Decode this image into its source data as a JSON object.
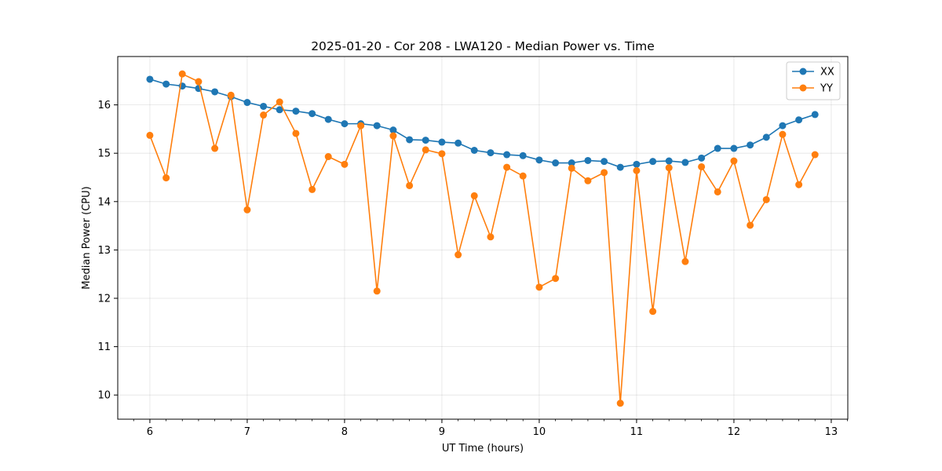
{
  "chart_data": {
    "type": "line",
    "title": "2025-01-20 - Cor 208 - LWA120 - Median Power vs. Time",
    "xlabel": "UT Time (hours)",
    "ylabel": "Median Power (CPU)",
    "xlim": [
      5.67,
      13.17
    ],
    "ylim": [
      9.5,
      17.0
    ],
    "xticks": [
      6,
      7,
      8,
      9,
      10,
      11,
      12,
      13
    ],
    "yticks": [
      10,
      11,
      12,
      13,
      14,
      15,
      16
    ],
    "grid": true,
    "legend_position": "top-right",
    "x": [
      6.0,
      6.167,
      6.333,
      6.5,
      6.667,
      6.833,
      7.0,
      7.167,
      7.333,
      7.5,
      7.667,
      7.833,
      8.0,
      8.167,
      8.333,
      8.5,
      8.667,
      8.833,
      9.0,
      9.167,
      9.333,
      9.5,
      9.667,
      9.833,
      10.0,
      10.167,
      10.333,
      10.5,
      10.667,
      10.833,
      11.0,
      11.167,
      11.333,
      11.5,
      11.667,
      11.833,
      12.0,
      12.167,
      12.333,
      12.5,
      12.667,
      12.833
    ],
    "series": [
      {
        "name": "XX",
        "color": "#1f77b4",
        "values": [
          16.53,
          16.43,
          16.39,
          16.34,
          16.27,
          16.17,
          16.05,
          15.97,
          15.9,
          15.87,
          15.82,
          15.7,
          15.61,
          15.61,
          15.57,
          15.48,
          15.28,
          15.27,
          15.23,
          15.21,
          15.06,
          15.01,
          14.97,
          14.95,
          14.86,
          14.8,
          14.8,
          14.85,
          14.83,
          14.71,
          14.77,
          14.83,
          14.84,
          14.81,
          14.9,
          15.1,
          15.1,
          15.17,
          15.33,
          15.57,
          15.69,
          15.8
        ]
      },
      {
        "name": "YY",
        "color": "#ff7f0e",
        "values": [
          15.37,
          14.49,
          16.64,
          16.48,
          15.1,
          16.2,
          13.83,
          15.79,
          16.06,
          15.41,
          14.25,
          14.93,
          14.77,
          15.57,
          12.15,
          15.36,
          14.33,
          15.07,
          14.99,
          12.9,
          14.12,
          13.27,
          14.71,
          14.53,
          12.23,
          12.41,
          14.69,
          14.43,
          14.6,
          9.83,
          14.64,
          11.73,
          14.7,
          12.76,
          14.72,
          14.2,
          14.84,
          13.51,
          14.04,
          15.39,
          14.35,
          14.97
        ]
      }
    ]
  }
}
